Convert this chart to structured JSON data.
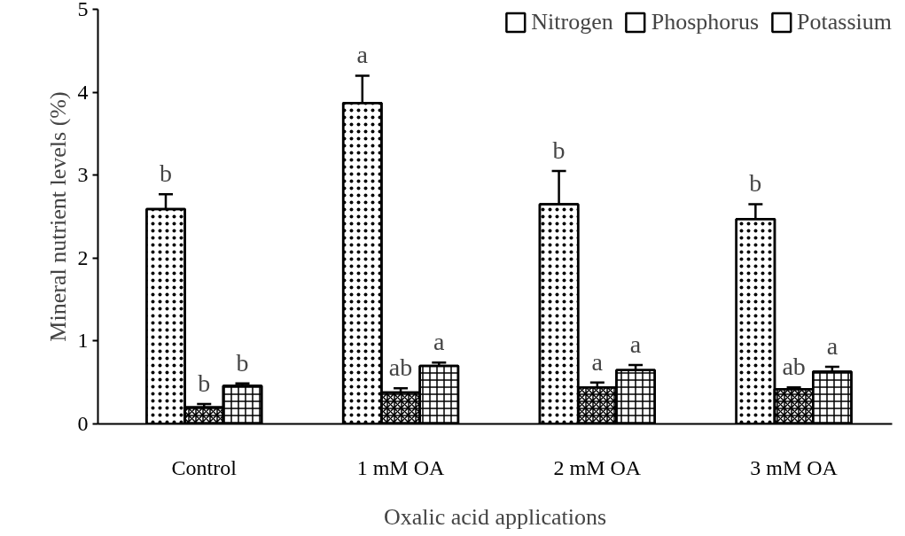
{
  "chart_data": {
    "type": "bar",
    "xlabel": "Oxalic acid applications",
    "ylabel": "Mineral nutrient levels (%)",
    "categories": [
      "Control",
      "1 mM OA",
      "2 mM OA",
      "3 mM OA"
    ],
    "series": [
      {
        "name": "Nitrogen",
        "color": "#ffffff",
        "values": [
          2.59,
          3.87,
          2.65,
          2.47
        ],
        "errors": [
          0.18,
          0.33,
          0.4,
          0.18
        ],
        "value_labels": [
          "b",
          "a",
          "b",
          "b"
        ]
      },
      {
        "name": "Phosphorus",
        "color": "#ffffff",
        "values": [
          0.2,
          0.38,
          0.44,
          0.42
        ],
        "errors": [
          0.04,
          0.05,
          0.06,
          0.02
        ],
        "value_labels": [
          "b",
          "ab",
          "a",
          "ab"
        ]
      },
      {
        "name": "Potassium",
        "color": "#ffffff",
        "values": [
          0.46,
          0.7,
          0.65,
          0.63
        ],
        "errors": [
          0.03,
          0.04,
          0.06,
          0.06
        ],
        "value_labels": [
          "b",
          "a",
          "a",
          "a"
        ]
      }
    ],
    "ylim": [
      0,
      5
    ],
    "yticks": [
      0,
      1,
      2,
      3,
      4,
      5
    ],
    "grid": false,
    "legend": "top right"
  }
}
